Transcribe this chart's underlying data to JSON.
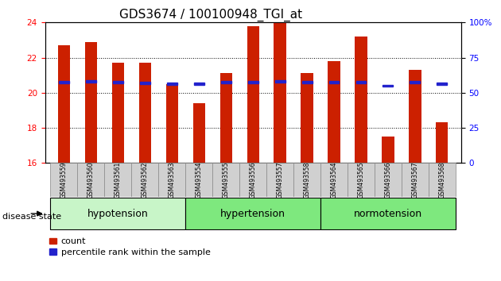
{
  "title": "GDS3674 / 100100948_TGI_at",
  "samples": [
    "GSM493559",
    "GSM493560",
    "GSM493561",
    "GSM493562",
    "GSM493563",
    "GSM493554",
    "GSM493555",
    "GSM493556",
    "GSM493557",
    "GSM493558",
    "GSM493564",
    "GSM493565",
    "GSM493566",
    "GSM493567",
    "GSM493568"
  ],
  "bar_values": [
    22.7,
    22.9,
    21.7,
    21.7,
    20.5,
    19.4,
    21.1,
    23.8,
    24.0,
    21.1,
    21.8,
    23.2,
    17.5,
    21.3,
    18.3
  ],
  "blue_values": [
    20.6,
    20.65,
    20.6,
    20.55,
    20.5,
    20.5,
    20.6,
    20.6,
    20.65,
    20.6,
    20.6,
    20.6,
    20.4,
    20.6,
    20.5
  ],
  "groups": [
    {
      "label": "hypotension",
      "count": 5,
      "color": "#C8F5C8"
    },
    {
      "label": "hypertension",
      "count": 5,
      "color": "#7EE87E"
    },
    {
      "label": "normotension",
      "count": 5,
      "color": "#7EE87E"
    }
  ],
  "ylim_left": [
    16,
    24
  ],
  "ylim_right": [
    0,
    100
  ],
  "yticks_left": [
    16,
    18,
    20,
    22,
    24
  ],
  "yticks_right": [
    0,
    25,
    50,
    75,
    100
  ],
  "bar_color": "#CC2000",
  "blue_color": "#2222CC",
  "bar_width": 0.45,
  "title_fontsize": 11,
  "tick_fontsize": 7.5,
  "label_fontsize": 8,
  "group_fontsize": 9
}
